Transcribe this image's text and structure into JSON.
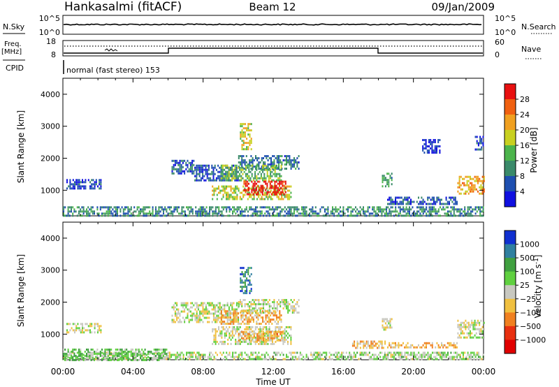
{
  "header": {
    "station": "Hankasalmi (fitACF)",
    "beam": "Beam 12",
    "date": "09/Jan/2009"
  },
  "top_panels": {
    "nsky_label": "N.Sky",
    "nsky_ticks": [
      "10^5",
      "10^0"
    ],
    "nsearch_label": "N.Search",
    "nsearch_ticks": [
      "10^5",
      "10^0"
    ],
    "freq_label": "Freq.",
    "freq_unit": "[MHz]",
    "freq_ticks": [
      "18",
      "8"
    ],
    "nave_label": "Nave",
    "nave_ticks": [
      "60",
      "0"
    ],
    "cpid_label": "CPID",
    "cpid_text": "normal (fast stereo) 153"
  },
  "chart_data": [
    {
      "type": "heatmap",
      "name": "power",
      "xlabel": "Time UT",
      "ylabel": "Slant Range [km]",
      "xlim": [
        0,
        24
      ],
      "ylim": [
        200,
        4500
      ],
      "x_tick_labels": [
        "00:00",
        "04:00",
        "08:00",
        "12:00",
        "16:00",
        "20:00",
        "00:00"
      ],
      "y_tick_labels": [
        "1000",
        "2000",
        "3000",
        "4000"
      ],
      "colorbar": {
        "label": "Power [dB]",
        "ticks": [
          "4",
          "8",
          "12",
          "16",
          "20",
          "24",
          "28"
        ],
        "colors": [
          "#1010e0",
          "#1e4fb0",
          "#3a8a6a",
          "#4cb44c",
          "#c8d020",
          "#f0a020",
          "#f06010",
          "#e81010"
        ]
      },
      "regions": [
        {
          "t0": 0.0,
          "t1": 24.0,
          "r0": 200,
          "r1": 500,
          "level": 0.3
        },
        {
          "t0": 0.2,
          "t1": 2.2,
          "r0": 1050,
          "r1": 1350,
          "level": 0.15
        },
        {
          "t0": 6.2,
          "t1": 7.5,
          "r0": 1500,
          "r1": 1950,
          "level": 0.2
        },
        {
          "t0": 7.5,
          "t1": 10.0,
          "r0": 1300,
          "r1": 1800,
          "level": 0.2
        },
        {
          "t0": 10.0,
          "t1": 13.5,
          "r0": 1700,
          "r1": 2100,
          "level": 0.25
        },
        {
          "t0": 9.0,
          "t1": 12.5,
          "r0": 1300,
          "r1": 1800,
          "level": 0.45
        },
        {
          "t0": 8.5,
          "t1": 13.0,
          "r0": 700,
          "r1": 1150,
          "level": 0.55
        },
        {
          "t0": 10.3,
          "t1": 12.7,
          "r0": 850,
          "r1": 1300,
          "level": 0.95
        },
        {
          "t0": 10.1,
          "t1": 10.8,
          "r0": 2300,
          "r1": 3100,
          "level": 0.6
        },
        {
          "t0": 18.2,
          "t1": 18.8,
          "r0": 1150,
          "r1": 1550,
          "level": 0.35
        },
        {
          "t0": 18.5,
          "t1": 22.5,
          "r0": 600,
          "r1": 800,
          "level": 0.2
        },
        {
          "t0": 22.5,
          "t1": 24.0,
          "r0": 900,
          "r1": 1450,
          "level": 0.7
        },
        {
          "t0": 20.5,
          "t1": 21.5,
          "r0": 2200,
          "r1": 2600,
          "level": 0.1
        },
        {
          "t0": 23.5,
          "t1": 24.0,
          "r0": 2300,
          "r1": 2700,
          "level": 0.15
        }
      ]
    },
    {
      "type": "heatmap",
      "name": "velocity",
      "xlabel": "Time UT",
      "ylabel": "Slant Range [km]",
      "xlim": [
        0,
        24
      ],
      "ylim": [
        200,
        4500
      ],
      "x_tick_labels": [
        "00:00",
        "04:00",
        "08:00",
        "12:00",
        "16:00",
        "20:00",
        "00:00"
      ],
      "y_tick_labels": [
        "1000",
        "2000",
        "3000",
        "4000"
      ],
      "colorbar": {
        "label": "Velocity [m s^-1]",
        "ticks": [
          "1000",
          "500",
          "100",
          "25",
          "−25",
          "−100",
          "−500",
          "−1000"
        ],
        "colors": [
          "#1030d0",
          "#3080a0",
          "#40a040",
          "#60d040",
          "#c8c8c0",
          "#f0c040",
          "#f08020",
          "#e83010",
          "#e00000"
        ]
      },
      "regions": [
        {
          "t0": 0.0,
          "t1": 24.0,
          "r0": 200,
          "r1": 450,
          "level": 0.55
        },
        {
          "t0": 0.0,
          "t1": 6.0,
          "r0": 200,
          "r1": 550,
          "level": 0.62
        },
        {
          "t0": 0.2,
          "t1": 2.2,
          "r0": 1050,
          "r1": 1350,
          "level": 0.5
        },
        {
          "t0": 6.2,
          "t1": 10.0,
          "r0": 1400,
          "r1": 2000,
          "level": 0.5
        },
        {
          "t0": 10.0,
          "t1": 13.5,
          "r0": 1650,
          "r1": 2100,
          "level": 0.5
        },
        {
          "t0": 9.0,
          "t1": 12.5,
          "r0": 1300,
          "r1": 1750,
          "level": 0.38
        },
        {
          "t0": 8.5,
          "t1": 13.0,
          "r0": 700,
          "r1": 1250,
          "level": 0.5
        },
        {
          "t0": 10.0,
          "t1": 12.5,
          "r0": 800,
          "r1": 1100,
          "level": 0.36
        },
        {
          "t0": 10.1,
          "t1": 10.8,
          "r0": 2300,
          "r1": 3100,
          "level": 0.8
        },
        {
          "t0": 18.2,
          "t1": 18.8,
          "r0": 1150,
          "r1": 1500,
          "level": 0.5
        },
        {
          "t0": 18.5,
          "t1": 22.5,
          "r0": 600,
          "r1": 750,
          "level": 0.36
        },
        {
          "t0": 22.5,
          "t1": 24.0,
          "r0": 900,
          "r1": 1450,
          "level": 0.5
        },
        {
          "t0": 16.5,
          "t1": 18.5,
          "r0": 600,
          "r1": 800,
          "level": 0.38
        }
      ]
    }
  ]
}
